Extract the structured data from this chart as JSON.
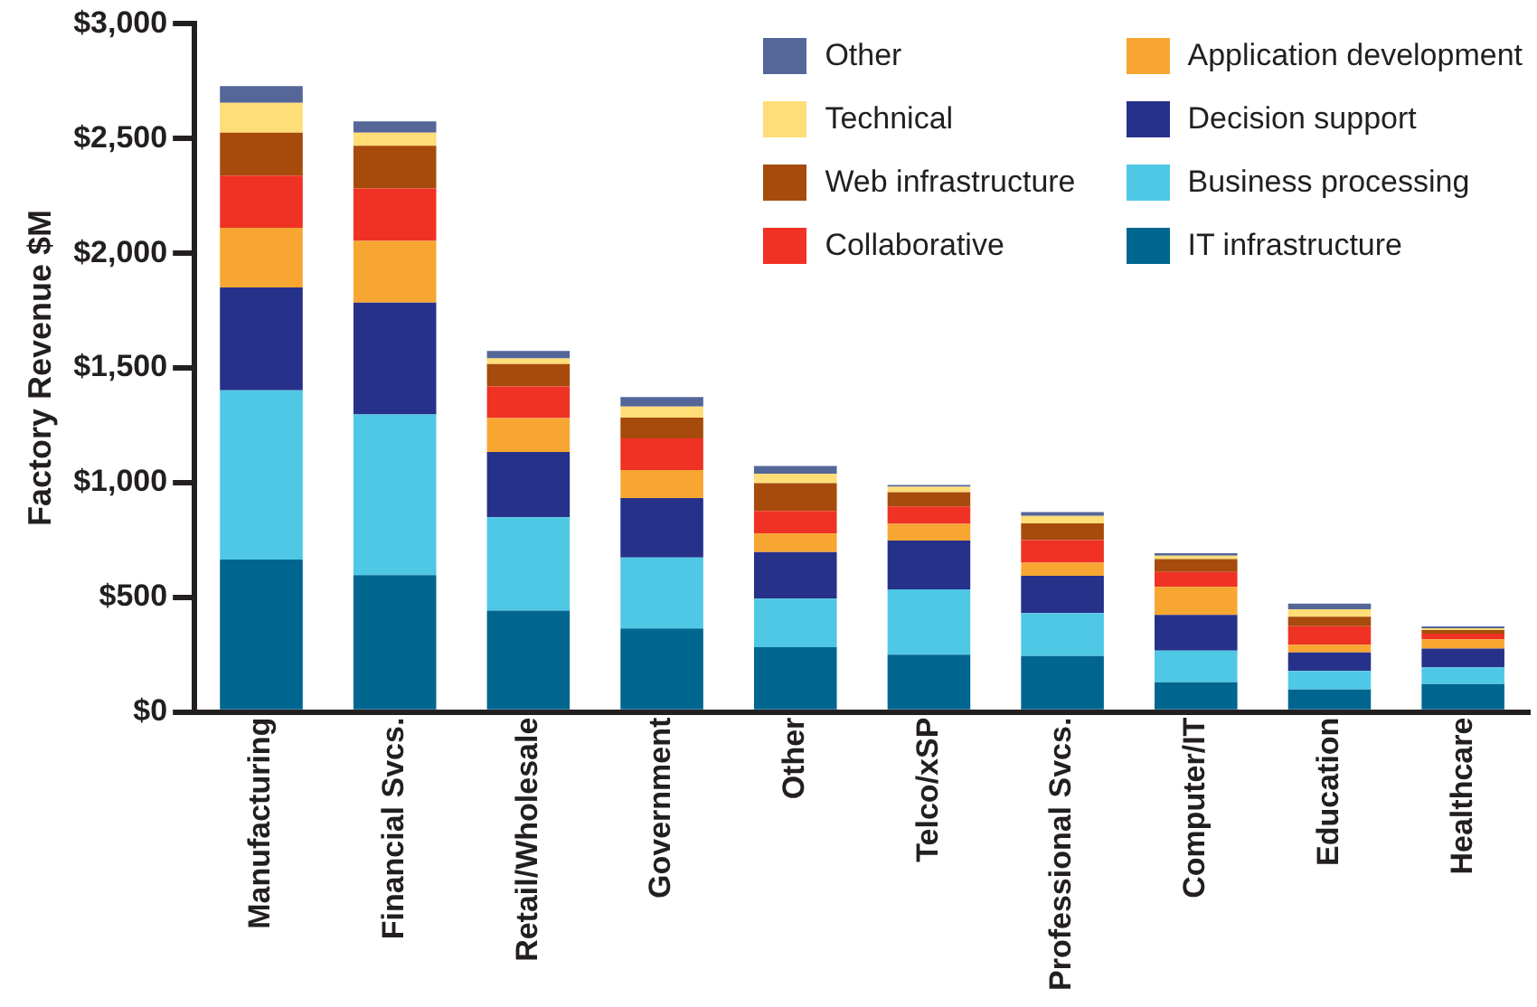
{
  "chart_data": {
    "type": "bar",
    "stacked": true,
    "ylabel": "Factory Revenue $M",
    "categories": [
      "Manufacturing",
      "Financial Svcs.",
      "Retail/Wholesale",
      "Government",
      "Other",
      "Telco/xSP",
      "Professional Svcs.",
      "Computer/IT",
      "Education",
      "Healthcare"
    ],
    "series": [
      {
        "name": "IT infrastructure",
        "color": "#00668f",
        "values": [
          665,
          597,
          442,
          364,
          282,
          250,
          244,
          130,
          98,
          122
        ]
      },
      {
        "name": "Business processing",
        "color": "#4fc8e6",
        "values": [
          738,
          700,
          407,
          309,
          212,
          285,
          187,
          138,
          81,
          73
        ]
      },
      {
        "name": "Decision support",
        "color": "#26318a",
        "values": [
          448,
          488,
          285,
          260,
          203,
          212,
          163,
          155,
          81,
          81
        ]
      },
      {
        "name": "Application development",
        "color": "#f8a632",
        "values": [
          260,
          269,
          147,
          122,
          81,
          73,
          57,
          122,
          33,
          41
        ]
      },
      {
        "name": "Collaborative",
        "color": "#ef3224",
        "values": [
          228,
          228,
          138,
          138,
          98,
          76,
          98,
          65,
          81,
          24
        ]
      },
      {
        "name": "Web infrastructure",
        "color": "#a64b0b",
        "values": [
          187,
          187,
          98,
          90,
          122,
          62,
          73,
          57,
          41,
          16
        ]
      },
      {
        "name": "Technical",
        "color": "#ffdd77",
        "values": [
          130,
          57,
          24,
          49,
          41,
          24,
          33,
          14,
          33,
          8
        ]
      },
      {
        "name": "Other",
        "color": "#556699",
        "values": [
          73,
          49,
          33,
          41,
          33,
          8,
          16,
          11,
          24,
          8
        ]
      }
    ],
    "ylim": [
      0,
      3000
    ],
    "yticks": [
      {
        "value": 0,
        "label": "$0"
      },
      {
        "value": 500,
        "label": "$500"
      },
      {
        "value": 1000,
        "label": "$1,000"
      },
      {
        "value": 1500,
        "label": "$1,500"
      },
      {
        "value": 2000,
        "label": "$2,000"
      },
      {
        "value": 2500,
        "label": "$2,500"
      },
      {
        "value": 3000,
        "label": "$3,000"
      }
    ],
    "grid": false,
    "legend": "top right"
  }
}
